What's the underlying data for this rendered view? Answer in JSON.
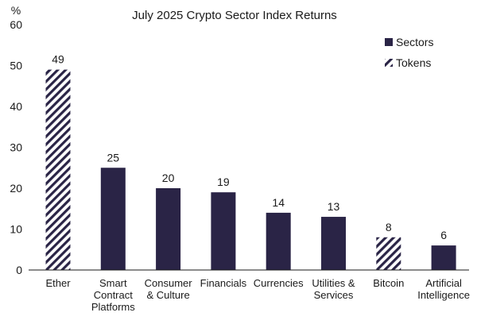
{
  "chart_data": {
    "type": "bar",
    "title": "July 2025 Crypto Sector Index Returns",
    "y_unit": "%",
    "ylim": [
      0,
      60
    ],
    "yticks": [
      0,
      10,
      20,
      30,
      40,
      50,
      60
    ],
    "grid": false,
    "legend_position": "top-right",
    "categories": [
      [
        "Ether"
      ],
      [
        "Smart",
        "Contract",
        "Platforms"
      ],
      [
        "Consumer",
        "& Culture"
      ],
      [
        "Financials"
      ],
      [
        "Currencies"
      ],
      [
        "Utilities &",
        "Services"
      ],
      [
        "Bitcoin"
      ],
      [
        "Artificial",
        "Intelligence"
      ]
    ],
    "values": [
      49,
      25,
      20,
      19,
      14,
      13,
      8,
      6
    ],
    "data_labels": [
      "49",
      "25",
      "20",
      "19",
      "14",
      "13",
      "8",
      "6"
    ],
    "bar_kind": [
      "token",
      "sector",
      "sector",
      "sector",
      "sector",
      "sector",
      "token",
      "sector"
    ],
    "legend": [
      {
        "kind": "sector",
        "label": "Sectors"
      },
      {
        "kind": "token",
        "label": "Tokens"
      }
    ],
    "colors": {
      "sector": "#2a2446",
      "token_stripe": "#2a2446",
      "token_background": "#ffffff",
      "axis": "#1a1a1a"
    }
  }
}
